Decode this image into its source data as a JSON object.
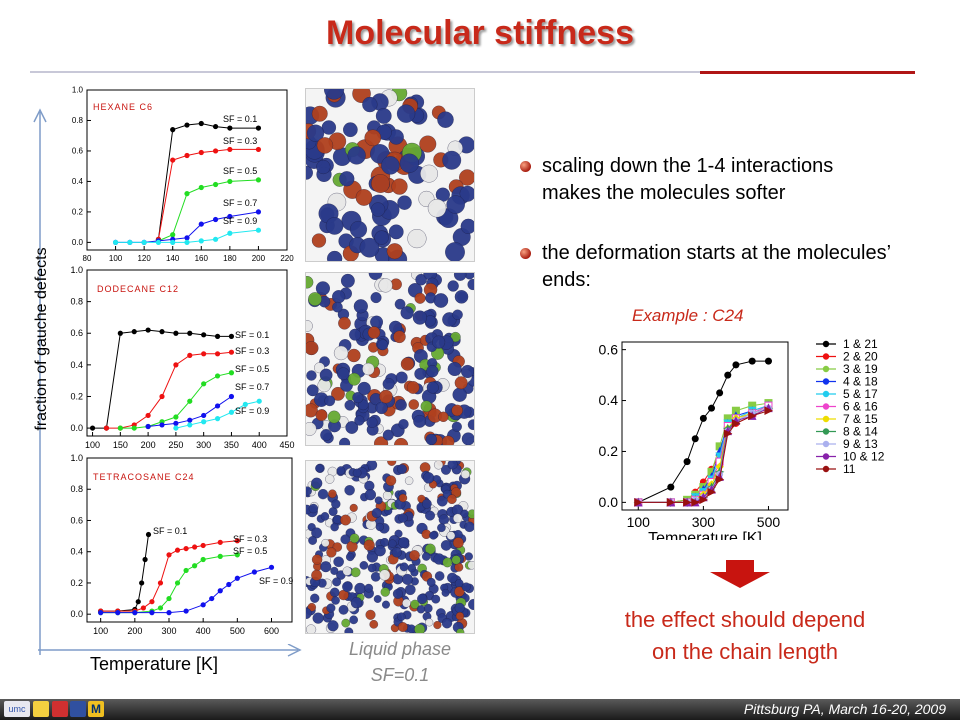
{
  "slide": {
    "title": "Molecular stiffness",
    "y_axis_label": "fraction of gauche defects",
    "x_axis_label": "Temperature [K]",
    "liquid_phase_line1": "Liquid phase",
    "liquid_phase_line2": "SF=0.1",
    "bullets": [
      {
        "line1": "scaling down the 1-4 interactions",
        "line2": "makes the molecules softer"
      },
      {
        "line1": "the deformation starts at the molecules’",
        "line2": "ends:"
      }
    ],
    "example_label": "Example : C24",
    "conclusion_line1": "the effect should depend",
    "conclusion_line2": "on the chain length",
    "footer": "Pittsburg PA, March 16-20, 2009",
    "logos": [
      "umc",
      "logo-2",
      "logo-3",
      "logo-4",
      "M"
    ]
  },
  "colors": {
    "accent": "#c8291a",
    "sf01": "#000000",
    "sf03": "#ee1111",
    "sf05": "#22dd22",
    "sf07": "#1111ee",
    "sf09": "#22e8f0"
  },
  "chart_data": [
    {
      "type": "line",
      "title": "HEXANE C6",
      "xticks": [
        80,
        100,
        120,
        140,
        160,
        180,
        200,
        220
      ],
      "yticks": [
        0.0,
        0.2,
        0.4,
        0.6,
        0.8,
        1.0
      ],
      "xlim": [
        80,
        220
      ],
      "ylim": [
        -0.05,
        1.0
      ],
      "series": [
        {
          "name": "SF = 0.1",
          "color": "#000000",
          "x": [
            130,
            140,
            150,
            160,
            170,
            180,
            200
          ],
          "y": [
            0.02,
            0.74,
            0.77,
            0.78,
            0.76,
            0.75,
            0.75
          ]
        },
        {
          "name": "SF = 0.3",
          "color": "#ee1111",
          "x": [
            130,
            140,
            150,
            160,
            170,
            180,
            200
          ],
          "y": [
            0.02,
            0.54,
            0.57,
            0.59,
            0.6,
            0.61,
            0.61
          ]
        },
        {
          "name": "SF = 0.5",
          "color": "#22dd22",
          "x": [
            130,
            140,
            150,
            160,
            170,
            180,
            200
          ],
          "y": [
            0.01,
            0.05,
            0.32,
            0.36,
            0.38,
            0.4,
            0.41
          ]
        },
        {
          "name": "SF = 0.7",
          "color": "#1111ee",
          "x": [
            100,
            110,
            120,
            130,
            140,
            150,
            160,
            170,
            180,
            200
          ],
          "y": [
            0.0,
            0.0,
            0.0,
            0.01,
            0.02,
            0.03,
            0.12,
            0.15,
            0.17,
            0.2
          ]
        },
        {
          "name": "SF = 0.9",
          "color": "#22e8f0",
          "x": [
            100,
            110,
            120,
            130,
            140,
            150,
            160,
            170,
            180,
            200
          ],
          "y": [
            0.0,
            0.0,
            0.0,
            0.0,
            0.0,
            0.0,
            0.01,
            0.02,
            0.06,
            0.08
          ]
        }
      ]
    },
    {
      "type": "line",
      "title": "DODECANE C12",
      "xticks": [
        100,
        150,
        200,
        250,
        300,
        350,
        400,
        450
      ],
      "yticks": [
        0.0,
        0.2,
        0.4,
        0.6,
        0.8,
        1.0
      ],
      "xlim": [
        90,
        450
      ],
      "ylim": [
        -0.05,
        1.0
      ],
      "series": [
        {
          "name": "SF = 0.1",
          "color": "#000000",
          "x": [
            100,
            125,
            150,
            175,
            200,
            225,
            250,
            275,
            300,
            325,
            350
          ],
          "y": [
            0.0,
            0.0,
            0.6,
            0.61,
            0.62,
            0.61,
            0.6,
            0.6,
            0.59,
            0.58,
            0.58
          ]
        },
        {
          "name": "SF = 0.3",
          "color": "#ee1111",
          "x": [
            125,
            150,
            175,
            200,
            225,
            250,
            275,
            300,
            325,
            350
          ],
          "y": [
            0.0,
            0.0,
            0.02,
            0.08,
            0.2,
            0.4,
            0.46,
            0.47,
            0.47,
            0.48
          ]
        },
        {
          "name": "SF = 0.5",
          "color": "#22dd22",
          "x": [
            150,
            175,
            200,
            225,
            250,
            275,
            300,
            325,
            350
          ],
          "y": [
            0.0,
            0.0,
            0.01,
            0.04,
            0.07,
            0.17,
            0.28,
            0.33,
            0.35
          ]
        },
        {
          "name": "SF = 0.7",
          "color": "#1111ee",
          "x": [
            200,
            225,
            250,
            275,
            300,
            325,
            350
          ],
          "y": [
            0.01,
            0.02,
            0.03,
            0.05,
            0.08,
            0.14,
            0.2
          ]
        },
        {
          "name": "SF = 0.9",
          "color": "#22e8f0",
          "x": [
            250,
            275,
            300,
            325,
            350,
            375,
            400
          ],
          "y": [
            0.0,
            0.02,
            0.04,
            0.06,
            0.1,
            0.15,
            0.17
          ]
        }
      ]
    },
    {
      "type": "line",
      "title": "TETRACOSANE C24",
      "xticks": [
        100,
        200,
        300,
        400,
        500,
        600
      ],
      "yticks": [
        0.0,
        0.2,
        0.4,
        0.6,
        0.8,
        1.0
      ],
      "xlim": [
        60,
        660
      ],
      "ylim": [
        -0.05,
        1.0
      ],
      "series": [
        {
          "name": "SF = 0.1",
          "color": "#000000",
          "x": [
            100,
            150,
            200,
            210,
            220,
            230,
            240
          ],
          "y": [
            0.02,
            0.02,
            0.03,
            0.08,
            0.2,
            0.35,
            0.51
          ]
        },
        {
          "name": "SF = 0.3",
          "color": "#ee1111",
          "x": [
            100,
            150,
            200,
            225,
            250,
            275,
            300,
            325,
            350,
            375,
            400,
            450,
            500
          ],
          "y": [
            0.02,
            0.02,
            0.02,
            0.04,
            0.08,
            0.2,
            0.38,
            0.41,
            0.42,
            0.43,
            0.44,
            0.46,
            0.47
          ]
        },
        {
          "name": "SF = 0.5",
          "color": "#22dd22",
          "x": [
            100,
            150,
            200,
            250,
            275,
            300,
            325,
            350,
            375,
            400,
            450,
            500
          ],
          "y": [
            0.01,
            0.01,
            0.01,
            0.02,
            0.04,
            0.1,
            0.2,
            0.28,
            0.31,
            0.35,
            0.37,
            0.38
          ]
        },
        {
          "name": "SF = 0.7",
          "color": "#1111ee",
          "x": [
            100,
            150,
            200,
            250,
            300,
            350,
            400,
            425,
            450,
            475,
            500,
            550,
            600
          ],
          "y": [
            0.01,
            0.01,
            0.01,
            0.01,
            0.01,
            0.02,
            0.06,
            0.1,
            0.15,
            0.19,
            0.23,
            0.27,
            0.3
          ]
        }
      ],
      "annotations": [
        "SF = 0.1",
        "SF = 0.3",
        "SF = 0.5",
        "SF = 0.9"
      ]
    },
    {
      "type": "line",
      "title": "",
      "xlabel": "Temperature [K]",
      "xticks": [
        100,
        300,
        500
      ],
      "yticks": [
        0.0,
        0.2,
        0.4,
        0.6
      ],
      "xlim": [
        50,
        560
      ],
      "ylim": [
        -0.03,
        0.63
      ],
      "series": [
        {
          "name": "1 & 21",
          "color": "#000000",
          "marker": "circle",
          "x": [
            100,
            200,
            250,
            275,
            300,
            325,
            350,
            375,
            400,
            450,
            500
          ],
          "y": [
            0.0,
            0.06,
            0.16,
            0.25,
            0.33,
            0.37,
            0.43,
            0.5,
            0.54,
            0.555,
            0.555
          ]
        },
        {
          "name": "2 & 20",
          "color": "#ee1111",
          "marker": "circle",
          "x": [
            100,
            200,
            250,
            275,
            300,
            325,
            350,
            375,
            400,
            450,
            500
          ],
          "y": [
            0.0,
            0.0,
            0.01,
            0.04,
            0.08,
            0.13,
            0.19,
            0.28,
            0.31,
            0.34,
            0.37
          ]
        },
        {
          "name": "3 & 19",
          "color": "#88cc44",
          "marker": "square",
          "x": [
            100,
            200,
            250,
            275,
            300,
            325,
            350,
            375,
            400,
            450,
            500
          ],
          "y": [
            0.0,
            0.0,
            0.01,
            0.03,
            0.06,
            0.12,
            0.22,
            0.33,
            0.36,
            0.38,
            0.39
          ]
        },
        {
          "name": "4 & 18",
          "color": "#1133ee",
          "marker": "triangle",
          "x": [
            100,
            200,
            250,
            275,
            300,
            325,
            350,
            375,
            400,
            450,
            500
          ],
          "y": [
            0.0,
            0.0,
            0.0,
            0.02,
            0.05,
            0.1,
            0.2,
            0.31,
            0.34,
            0.36,
            0.38
          ]
        },
        {
          "name": "5 & 17",
          "color": "#22ccee",
          "marker": "triangle-down",
          "x": [
            100,
            200,
            250,
            275,
            300,
            325,
            350,
            375,
            400,
            450,
            500
          ],
          "y": [
            0.0,
            0.0,
            0.0,
            0.02,
            0.04,
            0.09,
            0.18,
            0.31,
            0.33,
            0.36,
            0.38
          ]
        },
        {
          "name": "6 & 16",
          "color": "#ee44cc",
          "marker": "square-open",
          "x": [
            100,
            200,
            250,
            275,
            300,
            325,
            350,
            375,
            400,
            450,
            500
          ],
          "y": [
            0.0,
            0.0,
            0.0,
            0.01,
            0.03,
            0.08,
            0.16,
            0.3,
            0.33,
            0.35,
            0.38
          ]
        },
        {
          "name": "7 & 15",
          "color": "#eedd00",
          "marker": "diamond",
          "x": [
            100,
            200,
            250,
            275,
            300,
            325,
            350,
            375,
            400,
            450,
            500
          ],
          "y": [
            0.0,
            0.0,
            0.0,
            0.01,
            0.03,
            0.07,
            0.14,
            0.29,
            0.33,
            0.35,
            0.37
          ]
        },
        {
          "name": "8 & 14",
          "color": "#339955",
          "marker": "star",
          "x": [
            100,
            200,
            250,
            275,
            300,
            325,
            350,
            375,
            400,
            450,
            500
          ],
          "y": [
            0.0,
            0.0,
            0.0,
            0.01,
            0.02,
            0.06,
            0.12,
            0.29,
            0.32,
            0.35,
            0.37
          ]
        },
        {
          "name": "9 & 13",
          "color": "#aab0ee",
          "marker": "circle",
          "x": [
            100,
            200,
            250,
            275,
            300,
            325,
            350,
            375,
            400,
            450,
            500
          ],
          "y": [
            0.0,
            0.0,
            0.0,
            0.01,
            0.02,
            0.05,
            0.11,
            0.28,
            0.32,
            0.35,
            0.37
          ]
        },
        {
          "name": "10 & 12",
          "color": "#8822aa",
          "marker": "triangle",
          "x": [
            100,
            200,
            250,
            275,
            300,
            325,
            350,
            375,
            400,
            450,
            500
          ],
          "y": [
            0.0,
            0.0,
            0.0,
            0.0,
            0.02,
            0.05,
            0.1,
            0.28,
            0.32,
            0.34,
            0.37
          ]
        },
        {
          "name": "11",
          "color": "#991111",
          "marker": "triangle-right",
          "x": [
            100,
            200,
            250,
            275,
            300,
            325,
            350,
            375,
            400,
            450,
            500
          ],
          "y": [
            0.0,
            0.0,
            0.0,
            0.0,
            0.01,
            0.04,
            0.09,
            0.27,
            0.31,
            0.34,
            0.36
          ]
        }
      ]
    }
  ]
}
